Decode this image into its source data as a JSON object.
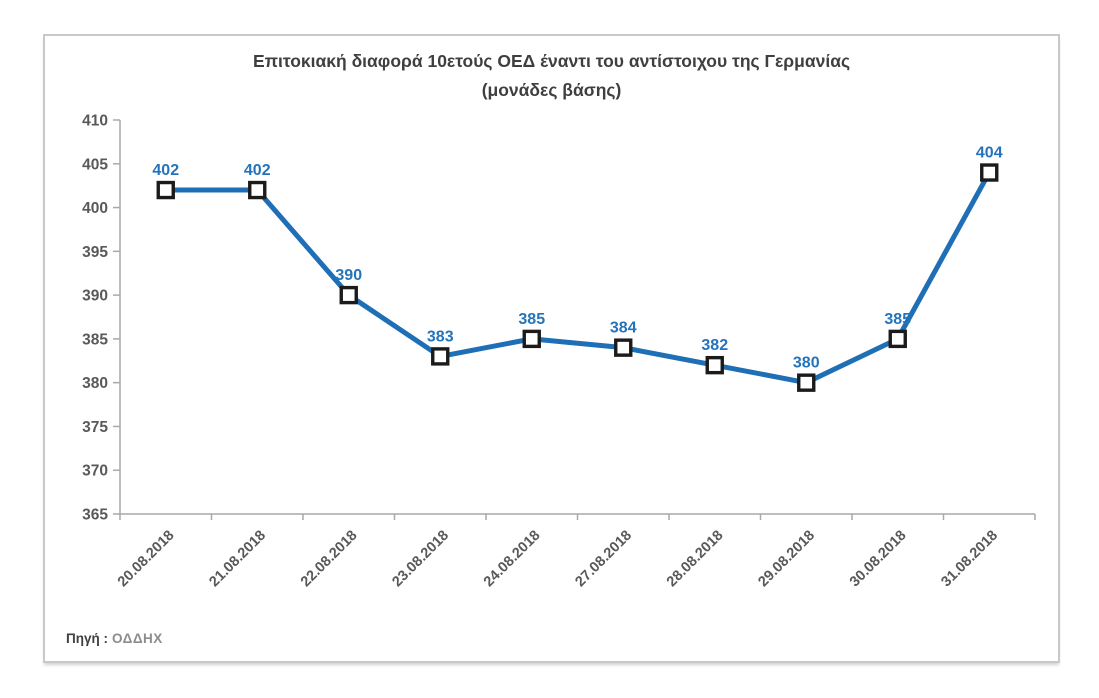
{
  "chart_data": {
    "type": "line",
    "title": "Επιτοκιακή διαφορά 10ετούς ΟΕΔ έναντι του αντίστοιχου της Γερμανίας",
    "subtitle": "(μονάδες βάσης)",
    "categories": [
      "20.08.2018",
      "21.08.2018",
      "22.08.2018",
      "23.08.2018",
      "24.08.2018",
      "27.08.2018",
      "28.08.2018",
      "29.08.2018",
      "30.08.2018",
      "31.08.2018"
    ],
    "values": [
      402,
      402,
      390,
      383,
      385,
      384,
      382,
      380,
      385,
      404
    ],
    "xlabel": "",
    "ylabel": "",
    "ylim": [
      365,
      410
    ],
    "ytick_step": 5,
    "grid": false,
    "legend": "none",
    "line_color": "#1e6fb5",
    "data_label_color": "#2374bc",
    "marker": "square-white-black-border",
    "marker_fill": "#ffffff",
    "marker_stroke": "#1b1b1b",
    "axis_color": "#a9a9a9",
    "tick_label_color": "#595959"
  },
  "footer": {
    "prefix": "Πηγή :",
    "source": "ΟΔΔΗΧ"
  }
}
